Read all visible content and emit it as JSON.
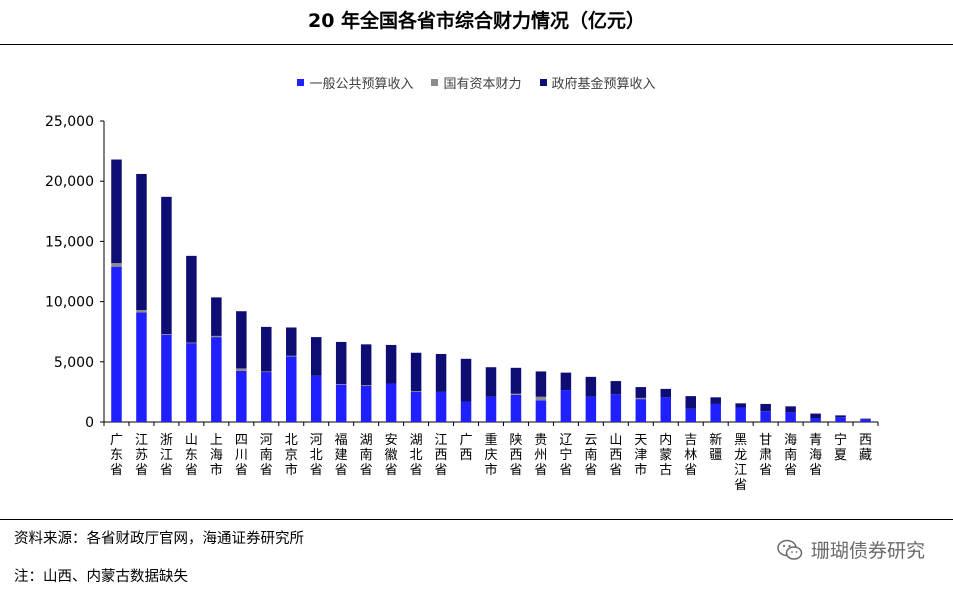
{
  "title": "20 年全国各省市综合财力情况（亿元）",
  "legend": [
    {
      "label": "一般公共预算收入",
      "color": "#1f1fff"
    },
    {
      "label": "国有资本财力",
      "color": "#8c8c8c"
    },
    {
      "label": "政府基金预算收入",
      "color": "#0d0d73"
    }
  ],
  "footer": {
    "source": "资料来源：各省财政厅官网，海通证券研究所",
    "note": "注：山西、内蒙古数据缺失"
  },
  "watermark": {
    "text": "珊瑚债券研究",
    "icon": "wechat-icon"
  },
  "chart_data": {
    "type": "bar",
    "stacked": true,
    "categories": [
      "广东省",
      "江苏省",
      "浙江省",
      "山东省",
      "上海市",
      "四川省",
      "河南省",
      "北京市",
      "河北省",
      "福建省",
      "湖南省",
      "安徽省",
      "湖北省",
      "江西省",
      "广西",
      "重庆市",
      "陕西省",
      "贵州省",
      "辽宁省",
      "云南省",
      "山西省",
      "天津市",
      "内蒙古",
      "吉林省",
      "新疆",
      "黑龙江省",
      "甘肃省",
      "海南省",
      "青海省",
      "宁夏",
      "西藏"
    ],
    "series": [
      {
        "name": "一般公共预算收入",
        "color": "#1f1fff",
        "values": [
          12900,
          9100,
          7250,
          6550,
          7050,
          4250,
          4150,
          5450,
          3850,
          3100,
          3000,
          3200,
          2500,
          2500,
          1700,
          2100,
          2250,
          1800,
          2650,
          2100,
          2300,
          1900,
          2050,
          1100,
          1500,
          1200,
          900,
          800,
          300,
          400,
          220
        ]
      },
      {
        "name": "国有资本财力",
        "color": "#8c8c8c",
        "values": [
          300,
          200,
          50,
          50,
          100,
          200,
          50,
          50,
          0,
          50,
          50,
          0,
          50,
          0,
          0,
          0,
          100,
          300,
          0,
          0,
          0,
          100,
          0,
          0,
          0,
          0,
          0,
          0,
          0,
          0,
          0
        ]
      },
      {
        "name": "政府基金预算收入",
        "color": "#0d0d73",
        "values": [
          8600,
          11300,
          11400,
          7200,
          3200,
          4750,
          3700,
          2350,
          3200,
          3500,
          3400,
          3200,
          3200,
          3150,
          3550,
          2450,
          2150,
          2100,
          1450,
          1650,
          1100,
          900,
          700,
          1050,
          550,
          350,
          600,
          500,
          400,
          150,
          60
        ]
      }
    ],
    "y_tick_labels": [
      "0",
      "5,000",
      "10,000",
      "15,000",
      "20,000",
      "25,000"
    ],
    "ylim": [
      0,
      25000
    ],
    "grid": false,
    "legend_position": "top"
  }
}
